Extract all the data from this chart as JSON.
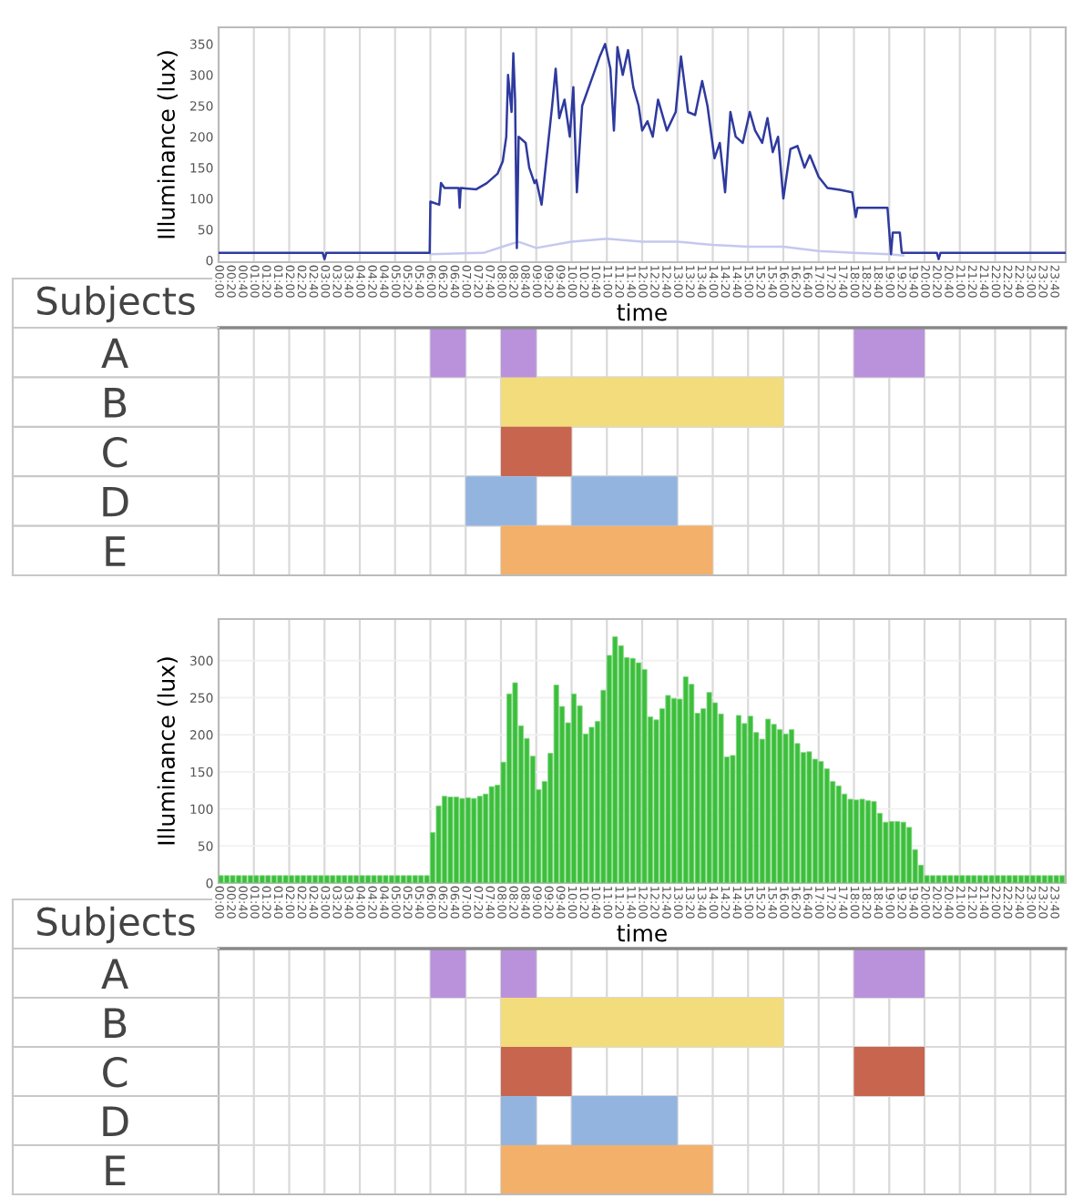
{
  "chart_data": [
    {
      "type": "line",
      "xlabel": "time",
      "ylabel": "Illuminance (lux)",
      "xlim": [
        0,
        24
      ],
      "ylim": [
        -3,
        377
      ],
      "yticks": [
        0,
        50,
        100,
        150,
        200,
        250,
        300,
        350
      ],
      "grid": "x",
      "xticks": [
        {
          "value": 0,
          "label": "00:00"
        },
        {
          "value": 0.3333,
          "label": "00:20"
        },
        {
          "value": 0.6667,
          "label": "00:40"
        },
        {
          "value": 1,
          "label": "01:00"
        },
        {
          "value": 1.3333,
          "label": "01:20"
        },
        {
          "value": 1.6667,
          "label": "01:40"
        },
        {
          "value": 2,
          "label": "02:00"
        },
        {
          "value": 2.3333,
          "label": "02:20"
        },
        {
          "value": 2.6667,
          "label": "02:40"
        },
        {
          "value": 3,
          "label": "03:00"
        },
        {
          "value": 3.3333,
          "label": "03:20"
        },
        {
          "value": 3.6667,
          "label": "03:40"
        },
        {
          "value": 4,
          "label": "04:00"
        },
        {
          "value": 4.3333,
          "label": "04:20"
        },
        {
          "value": 4.6667,
          "label": "04:40"
        },
        {
          "value": 5,
          "label": "05:00"
        },
        {
          "value": 5.3333,
          "label": "05:20"
        },
        {
          "value": 5.6667,
          "label": "05:40"
        },
        {
          "value": 6,
          "label": "06:00"
        },
        {
          "value": 6.3333,
          "label": "06:20"
        },
        {
          "value": 6.6667,
          "label": "06:40"
        },
        {
          "value": 7,
          "label": "07:00"
        },
        {
          "value": 7.3333,
          "label": "07:20"
        },
        {
          "value": 7.6667,
          "label": "07:40"
        },
        {
          "value": 8,
          "label": "08:00"
        },
        {
          "value": 8.3333,
          "label": "08:20"
        },
        {
          "value": 8.6667,
          "label": "08:40"
        },
        {
          "value": 9,
          "label": "09:00"
        },
        {
          "value": 9.3333,
          "label": "09:20"
        },
        {
          "value": 9.6667,
          "label": "09:40"
        },
        {
          "value": 10,
          "label": "10:00"
        },
        {
          "value": 10.3333,
          "label": "10:20"
        },
        {
          "value": 10.6667,
          "label": "10:40"
        },
        {
          "value": 11,
          "label": "11:00"
        },
        {
          "value": 11.3333,
          "label": "11:20"
        },
        {
          "value": 11.6667,
          "label": "11:40"
        },
        {
          "value": 12,
          "label": "12:00"
        },
        {
          "value": 12.3333,
          "label": "12:20"
        },
        {
          "value": 12.6667,
          "label": "12:40"
        },
        {
          "value": 13,
          "label": "13:00"
        },
        {
          "value": 13.3333,
          "label": "13:20"
        },
        {
          "value": 13.6667,
          "label": "13:40"
        },
        {
          "value": 14,
          "label": "14:00"
        },
        {
          "value": 14.3333,
          "label": "14:20"
        },
        {
          "value": 14.6667,
          "label": "14:40"
        },
        {
          "value": 15,
          "label": "15:00"
        },
        {
          "value": 15.3333,
          "label": "15:20"
        },
        {
          "value": 15.6667,
          "label": "15:40"
        },
        {
          "value": 16,
          "label": "16:00"
        },
        {
          "value": 16.3333,
          "label": "16:20"
        },
        {
          "value": 16.6667,
          "label": "16:40"
        },
        {
          "value": 17,
          "label": "17:00"
        },
        {
          "value": 17.3333,
          "label": "17:20"
        },
        {
          "value": 17.6667,
          "label": "17:40"
        },
        {
          "value": 18,
          "label": "18:00"
        },
        {
          "value": 18.3333,
          "label": "18:20"
        },
        {
          "value": 18.6667,
          "label": "18:40"
        },
        {
          "value": 19,
          "label": "19:00"
        },
        {
          "value": 19.3333,
          "label": "19:20"
        },
        {
          "value": 19.6667,
          "label": "19:40"
        },
        {
          "value": 20,
          "label": "20:00"
        },
        {
          "value": 20.3333,
          "label": "20:20"
        },
        {
          "value": 20.6667,
          "label": "20:40"
        },
        {
          "value": 21,
          "label": "21:00"
        },
        {
          "value": 21.3333,
          "label": "21:20"
        },
        {
          "value": 21.6667,
          "label": "21:40"
        },
        {
          "value": 22,
          "label": "22:00"
        },
        {
          "value": 22.3333,
          "label": "22:20"
        },
        {
          "value": 22.6667,
          "label": "22:40"
        },
        {
          "value": 23,
          "label": "23:00"
        },
        {
          "value": 23.3333,
          "label": "23:20"
        },
        {
          "value": 23.6667,
          "label": "23:40"
        }
      ],
      "series": [
        {
          "color": "#c5c8ee",
          "x": [
            6.0,
            7.5,
            8.2,
            8.5,
            9.0,
            10.0,
            11.0,
            12.0,
            13.0,
            14.0,
            15.0,
            16.0,
            17.0,
            18.0,
            19.0,
            19.4
          ],
          "values": [
            10,
            12,
            25,
            30,
            20,
            30,
            35,
            30,
            30,
            25,
            22,
            22,
            15,
            12,
            10,
            8
          ]
        },
        {
          "color": "#2e3a9e",
          "x": [
            0,
            2.95,
            3.0,
            3.05,
            5.98,
            6.0,
            6.25,
            6.3,
            6.4,
            6.8,
            6.83,
            6.86,
            7.3,
            7.6,
            7.9,
            8.05,
            8.15,
            8.2,
            8.3,
            8.35,
            8.4,
            8.45,
            8.5,
            8.7,
            8.8,
            8.95,
            9.0,
            9.15,
            9.3,
            9.45,
            9.55,
            9.65,
            9.8,
            9.95,
            10.05,
            10.15,
            10.3,
            10.55,
            10.8,
            10.95,
            11.1,
            11.2,
            11.3,
            11.45,
            11.6,
            11.75,
            11.9,
            12.0,
            12.15,
            12.3,
            12.45,
            12.7,
            12.95,
            13.1,
            13.3,
            13.5,
            13.7,
            13.85,
            14.05,
            14.2,
            14.35,
            14.5,
            14.65,
            14.85,
            15.05,
            15.2,
            15.4,
            15.55,
            15.7,
            15.85,
            16.0,
            16.2,
            16.4,
            16.6,
            16.75,
            17.0,
            17.25,
            17.6,
            17.95,
            18.05,
            18.1,
            18.95,
            19.05,
            19.1,
            19.3,
            19.35,
            19.36,
            20.35,
            20.4,
            20.45,
            24
          ],
          "values": [
            12,
            12,
            2,
            12,
            12,
            95,
            90,
            125,
            117,
            117,
            85,
            117,
            115,
            125,
            140,
            160,
            200,
            300,
            240,
            335,
            260,
            20,
            200,
            190,
            150,
            125,
            130,
            90,
            170,
            250,
            310,
            230,
            260,
            200,
            280,
            110,
            250,
            290,
            330,
            350,
            310,
            210,
            345,
            300,
            340,
            280,
            250,
            210,
            225,
            200,
            260,
            210,
            240,
            330,
            240,
            235,
            290,
            250,
            165,
            190,
            110,
            240,
            200,
            190,
            240,
            210,
            190,
            230,
            175,
            200,
            100,
            180,
            185,
            150,
            170,
            135,
            117,
            114,
            110,
            70,
            85,
            85,
            10,
            45,
            45,
            15,
            12,
            12,
            2,
            12,
            12
          ]
        }
      ]
    },
    {
      "type": "bar",
      "orientation": "horizontal",
      "ylabel": "Subjects",
      "categories": [
        "A",
        "B",
        "C",
        "D",
        "E"
      ],
      "xlim": [
        0,
        24
      ],
      "tick_labels": "y",
      "grid": "x",
      "xticks": [
        {
          "value": 0,
          "label": null
        },
        {
          "value": 1,
          "label": null
        },
        {
          "value": 2,
          "label": null
        },
        {
          "value": 3,
          "label": null
        },
        {
          "value": 4,
          "label": null
        },
        {
          "value": 5,
          "label": null
        },
        {
          "value": 6,
          "label": null
        },
        {
          "value": 7,
          "label": null
        },
        {
          "value": 8,
          "label": null
        },
        {
          "value": 9,
          "label": null
        },
        {
          "value": 10,
          "label": null
        },
        {
          "value": 11,
          "label": null
        },
        {
          "value": 12,
          "label": null
        },
        {
          "value": 13,
          "label": null
        },
        {
          "value": 14,
          "label": null
        },
        {
          "value": 15,
          "label": null
        },
        {
          "value": 16,
          "label": null
        },
        {
          "value": 17,
          "label": null
        },
        {
          "value": 18,
          "label": null
        },
        {
          "value": 19,
          "label": null
        },
        {
          "value": 20,
          "label": null
        },
        {
          "value": 21,
          "label": null
        },
        {
          "value": 22,
          "label": null
        },
        {
          "value": 23,
          "label": null
        },
        {
          "value": 24,
          "label": null
        }
      ],
      "series": [
        {
          "base": [
            6,
            8,
            8,
            7,
            8
          ],
          "values": [
            1,
            8,
            2,
            2,
            6
          ],
          "colors": [
            "#b992db",
            "#f2dc7c",
            "#c8654f",
            "#94b4e0",
            "#f3b06a"
          ]
        },
        {
          "base": [
            8,
            null,
            null,
            10,
            null
          ],
          "values": [
            1,
            null,
            null,
            3,
            null
          ],
          "colors": [
            "#b992db",
            null,
            null,
            "#94b4e0",
            null
          ]
        },
        {
          "base": [
            18,
            null,
            null,
            null,
            null
          ],
          "values": [
            2,
            null,
            null,
            null,
            null
          ],
          "colors": [
            "#b992db",
            null,
            null,
            null,
            null
          ]
        }
      ]
    },
    {
      "type": "bar",
      "xlabel": "time",
      "ylabel": "Illuminance (lux)",
      "xlim": [
        0,
        24
      ],
      "ylim": [
        0,
        356
      ],
      "yticks": [
        0,
        50,
        100,
        150,
        200,
        250,
        300
      ],
      "grid": true,
      "xticks": [
        {
          "value": 0,
          "label": "00:00"
        },
        {
          "value": 0.3333,
          "label": "00:20"
        },
        {
          "value": 0.6667,
          "label": "00:40"
        },
        {
          "value": 1,
          "label": "01:00"
        },
        {
          "value": 1.3333,
          "label": "01:20"
        },
        {
          "value": 1.6667,
          "label": "01:40"
        },
        {
          "value": 2,
          "label": "02:00"
        },
        {
          "value": 2.3333,
          "label": "02:20"
        },
        {
          "value": 2.6667,
          "label": "02:40"
        },
        {
          "value": 3,
          "label": "03:00"
        },
        {
          "value": 3.3333,
          "label": "03:20"
        },
        {
          "value": 3.6667,
          "label": "03:40"
        },
        {
          "value": 4,
          "label": "04:00"
        },
        {
          "value": 4.3333,
          "label": "04:20"
        },
        {
          "value": 4.6667,
          "label": "04:40"
        },
        {
          "value": 5,
          "label": "05:00"
        },
        {
          "value": 5.3333,
          "label": "05:20"
        },
        {
          "value": 5.6667,
          "label": "05:40"
        },
        {
          "value": 6,
          "label": "06:00"
        },
        {
          "value": 6.3333,
          "label": "06:20"
        },
        {
          "value": 6.6667,
          "label": "06:40"
        },
        {
          "value": 7,
          "label": "07:00"
        },
        {
          "value": 7.3333,
          "label": "07:20"
        },
        {
          "value": 7.6667,
          "label": "07:40"
        },
        {
          "value": 8,
          "label": "08:00"
        },
        {
          "value": 8.3333,
          "label": "08:20"
        },
        {
          "value": 8.6667,
          "label": "08:40"
        },
        {
          "value": 9,
          "label": "09:00"
        },
        {
          "value": 9.3333,
          "label": "09:20"
        },
        {
          "value": 9.6667,
          "label": "09:40"
        },
        {
          "value": 10,
          "label": "10:00"
        },
        {
          "value": 10.3333,
          "label": "10:20"
        },
        {
          "value": 10.6667,
          "label": "10:40"
        },
        {
          "value": 11,
          "label": "11:00"
        },
        {
          "value": 11.3333,
          "label": "11:20"
        },
        {
          "value": 11.6667,
          "label": "11:40"
        },
        {
          "value": 12,
          "label": "12:00"
        },
        {
          "value": 12.3333,
          "label": "12:20"
        },
        {
          "value": 12.6667,
          "label": "12:40"
        },
        {
          "value": 13,
          "label": "13:00"
        },
        {
          "value": 13.3333,
          "label": "13:20"
        },
        {
          "value": 13.6667,
          "label": "13:40"
        },
        {
          "value": 14,
          "label": "14:00"
        },
        {
          "value": 14.3333,
          "label": "14:20"
        },
        {
          "value": 14.6667,
          "label": "14:40"
        },
        {
          "value": 15,
          "label": "15:00"
        },
        {
          "value": 15.3333,
          "label": "15:20"
        },
        {
          "value": 15.6667,
          "label": "15:40"
        },
        {
          "value": 16,
          "label": "16:00"
        },
        {
          "value": 16.3333,
          "label": "16:20"
        },
        {
          "value": 16.6667,
          "label": "16:40"
        },
        {
          "value": 17,
          "label": "17:00"
        },
        {
          "value": 17.3333,
          "label": "17:20"
        },
        {
          "value": 17.6667,
          "label": "17:40"
        },
        {
          "value": 18,
          "label": "18:00"
        },
        {
          "value": 18.3333,
          "label": "18:20"
        },
        {
          "value": 18.6667,
          "label": "18:40"
        },
        {
          "value": 19,
          "label": "19:00"
        },
        {
          "value": 19.3333,
          "label": "19:20"
        },
        {
          "value": 19.6667,
          "label": "19:40"
        },
        {
          "value": 20,
          "label": "20:00"
        },
        {
          "value": 20.3333,
          "label": "20:20"
        },
        {
          "value": 20.6667,
          "label": "20:40"
        },
        {
          "value": 21,
          "label": "21:00"
        },
        {
          "value": 21.3333,
          "label": "21:20"
        },
        {
          "value": 21.6667,
          "label": "21:40"
        },
        {
          "value": 22,
          "label": "22:00"
        },
        {
          "value": 22.3333,
          "label": "22:20"
        },
        {
          "value": 22.6667,
          "label": "22:40"
        },
        {
          "value": 23,
          "label": "23:00"
        },
        {
          "value": 23.3333,
          "label": "23:20"
        },
        {
          "value": 23.6667,
          "label": "23:40"
        }
      ],
      "color": "#3cbf3c",
      "x": [
        0,
        0.1667,
        0.3333,
        0.5,
        0.6667,
        0.8333,
        1,
        1.1667,
        1.3333,
        1.5,
        1.6667,
        1.8333,
        2,
        2.1667,
        2.3333,
        2.5,
        2.6667,
        2.8333,
        3,
        3.1667,
        3.3333,
        3.5,
        3.6667,
        3.8333,
        4,
        4.1667,
        4.3333,
        4.5,
        4.6667,
        4.8333,
        5,
        5.1667,
        5.3333,
        5.5,
        5.6667,
        5.8333,
        6,
        6.1667,
        6.3333,
        6.5,
        6.6667,
        6.8333,
        7,
        7.1667,
        7.3333,
        7.5,
        7.6667,
        7.8333,
        8,
        8.1667,
        8.3333,
        8.5,
        8.6667,
        8.8333,
        9,
        9.1667,
        9.3333,
        9.5,
        9.6667,
        9.8333,
        10,
        10.1667,
        10.3333,
        10.5,
        10.6667,
        10.8333,
        11,
        11.1667,
        11.3333,
        11.5,
        11.6667,
        11.8333,
        12,
        12.1667,
        12.3333,
        12.5,
        12.6667,
        12.8333,
        13,
        13.1667,
        13.3333,
        13.5,
        13.6667,
        13.8333,
        14,
        14.1667,
        14.3333,
        14.5,
        14.6667,
        14.8333,
        15,
        15.1667,
        15.3333,
        15.5,
        15.6667,
        15.8333,
        16,
        16.1667,
        16.3333,
        16.5,
        16.6667,
        16.8333,
        17,
        17.1667,
        17.3333,
        17.5,
        17.6667,
        17.8333,
        18,
        18.1667,
        18.3333,
        18.5,
        18.6667,
        18.8333,
        19,
        19.1667,
        19.3333,
        19.5,
        19.6667,
        19.8333,
        20,
        20.1667,
        20.3333,
        20.5,
        20.6667,
        20.8333,
        21,
        21.1667,
        21.3333,
        21.5,
        21.6667,
        21.8333,
        22,
        22.1667,
        22.3333,
        22.5,
        22.6667,
        22.8333,
        23,
        23.1667,
        23.3333,
        23.5,
        23.6667,
        23.8333
      ],
      "values": [
        10,
        10,
        10,
        10,
        10,
        10,
        10,
        10,
        10,
        10,
        10,
        10,
        10,
        10,
        10,
        10,
        10,
        10,
        10,
        10,
        10,
        10,
        10,
        10,
        10,
        10,
        10,
        10,
        10,
        10,
        10,
        10,
        10,
        10,
        10,
        10,
        68,
        104,
        117,
        116,
        116,
        114,
        115,
        114,
        117,
        120,
        130,
        132,
        163,
        255,
        270,
        212,
        195,
        171,
        126,
        137,
        175,
        267,
        238,
        216,
        255,
        239,
        201,
        210,
        218,
        260,
        307,
        332,
        320,
        304,
        303,
        297,
        288,
        224,
        220,
        235,
        253,
        249,
        248,
        278,
        268,
        229,
        235,
        257,
        243,
        228,
        170,
        172,
        226,
        215,
        225,
        203,
        194,
        221,
        214,
        207,
        201,
        207,
        188,
        176,
        177,
        167,
        164,
        154,
        137,
        131,
        120,
        113,
        112,
        113,
        111,
        110,
        94,
        82,
        83,
        83,
        82,
        75,
        45,
        24,
        10,
        10,
        10,
        10,
        10,
        10,
        10,
        10,
        10,
        10,
        10,
        10,
        10,
        10,
        10,
        10,
        10,
        10,
        10,
        10,
        10,
        10,
        10,
        10
      ]
    },
    {
      "type": "bar",
      "orientation": "horizontal",
      "ylabel": "Subjects",
      "categories": [
        "A",
        "B",
        "C",
        "D",
        "E"
      ],
      "xlim": [
        0,
        24
      ],
      "tick_labels": "y",
      "grid": "x",
      "xticks": [
        {
          "value": 0,
          "label": null
        },
        {
          "value": 1,
          "label": null
        },
        {
          "value": 2,
          "label": null
        },
        {
          "value": 3,
          "label": null
        },
        {
          "value": 4,
          "label": null
        },
        {
          "value": 5,
          "label": null
        },
        {
          "value": 6,
          "label": null
        },
        {
          "value": 7,
          "label": null
        },
        {
          "value": 8,
          "label": null
        },
        {
          "value": 9,
          "label": null
        },
        {
          "value": 10,
          "label": null
        },
        {
          "value": 11,
          "label": null
        },
        {
          "value": 12,
          "label": null
        },
        {
          "value": 13,
          "label": null
        },
        {
          "value": 14,
          "label": null
        },
        {
          "value": 15,
          "label": null
        },
        {
          "value": 16,
          "label": null
        },
        {
          "value": 17,
          "label": null
        },
        {
          "value": 18,
          "label": null
        },
        {
          "value": 19,
          "label": null
        },
        {
          "value": 20,
          "label": null
        },
        {
          "value": 21,
          "label": null
        },
        {
          "value": 22,
          "label": null
        },
        {
          "value": 23,
          "label": null
        },
        {
          "value": 24,
          "label": null
        }
      ],
      "series": [
        {
          "base": [
            6,
            8,
            8,
            8,
            8
          ],
          "values": [
            1,
            8,
            2,
            1,
            6
          ],
          "colors": [
            "#b992db",
            "#f2dc7c",
            "#c8654f",
            "#94b4e0",
            "#f3b06a"
          ]
        },
        {
          "base": [
            8,
            null,
            18,
            10,
            null
          ],
          "values": [
            1,
            null,
            2,
            3,
            null
          ],
          "colors": [
            "#b992db",
            null,
            "#c8654f",
            "#94b4e0",
            null
          ]
        },
        {
          "base": [
            18,
            null,
            null,
            null,
            null
          ],
          "values": [
            2,
            null,
            null,
            null,
            null
          ],
          "colors": [
            "#b992db",
            null,
            null,
            null,
            null
          ]
        }
      ]
    }
  ]
}
